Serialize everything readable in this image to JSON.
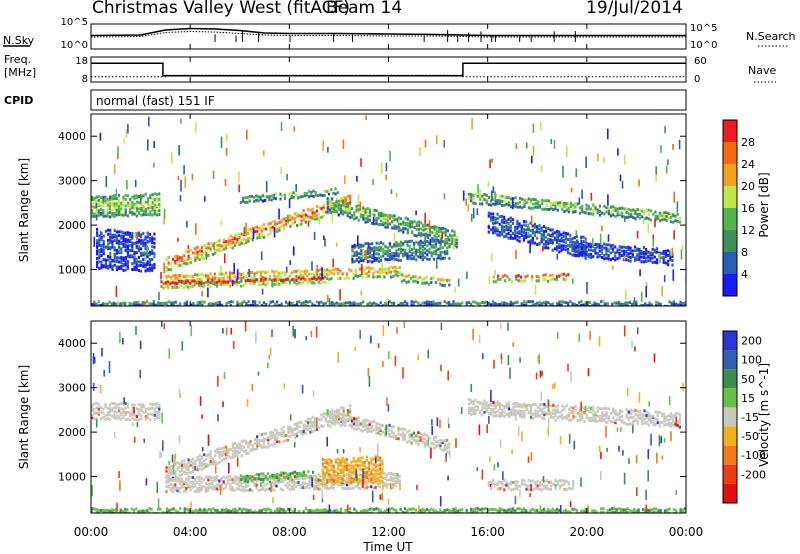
{
  "header": {
    "site": "Christmas Valley West (fitACF)",
    "beam": "Beam 14",
    "date": "19/Jul/2014"
  },
  "side_labels": {
    "nsky": "N.Sky",
    "nsearch": "N.Search",
    "freq_line1": "Freq.",
    "freq_line2": "[MHz]",
    "nave": "Nave",
    "cpid": "CPID"
  },
  "cpid_text": "normal (fast) 151 IF",
  "xlabel": "Time UT",
  "x_ticks": [
    "00:00",
    "04:00",
    "08:00",
    "12:00",
    "16:00",
    "20:00",
    "00:00"
  ],
  "noise_ticks": {
    "left": [
      "10^5",
      "10^0"
    ],
    "right": [
      "10^5",
      "10^0"
    ]
  },
  "freq_ticks": {
    "left": [
      "18",
      "8"
    ],
    "right": [
      "60",
      "0"
    ]
  },
  "colors": {
    "power": [
      "#1a1aff",
      "#2a5db8",
      "#3f8f5a",
      "#52b44a",
      "#bfe84a",
      "#f2a21e",
      "#f56b15",
      "#ee1c1c"
    ],
    "velocity": [
      "#2a36d6",
      "#2f5fae",
      "#3a8f4f",
      "#66c24a",
      "#c8c8be",
      "#f0b020",
      "#ee7a1a",
      "#f03a16",
      "#e01010"
    ]
  },
  "chart_data": [
    {
      "type": "line",
      "title": "N.Sky / N.Search",
      "x_range": [
        0,
        24
      ],
      "ylim": [
        0,
        5
      ],
      "log_scale": true,
      "series": [
        {
          "name": "N.Sky",
          "x": [
            0,
            2,
            3,
            4,
            5,
            6,
            7,
            8,
            10,
            12,
            14,
            15,
            16,
            18,
            20,
            22,
            24
          ],
          "y": [
            0.5,
            0.6,
            1.6,
            1.9,
            1.8,
            1.5,
            1.0,
            0.9,
            0.9,
            0.8,
            0.7,
            0.6,
            0.5,
            0.5,
            0.5,
            0.5,
            0.5
          ]
        },
        {
          "name": "N.Search",
          "x": [
            0,
            2,
            3,
            4,
            5,
            6,
            7,
            8,
            10,
            12,
            14,
            15,
            16,
            18,
            20,
            22,
            24
          ],
          "y": [
            0.4,
            0.5,
            1.3,
            1.5,
            1.4,
            1.1,
            0.8,
            0.7,
            0.7,
            0.6,
            0.6,
            0.5,
            0.4,
            0.4,
            0.4,
            0.4,
            0.4
          ]
        }
      ]
    },
    {
      "type": "line",
      "title": "Freq. / Nave",
      "x_range": [
        0,
        24
      ],
      "ylim_left": [
        8,
        18
      ],
      "ylim_right": [
        0,
        60
      ],
      "series": [
        {
          "name": "Freq.",
          "x": [
            0,
            2.9,
            2.9,
            15,
            15,
            24
          ],
          "y": [
            15.5,
            15.5,
            10.5,
            10.5,
            15.5,
            15.5
          ]
        },
        {
          "name": "Nave",
          "x": [
            0,
            3,
            3,
            15,
            15,
            24
          ],
          "y": [
            22,
            22,
            26,
            26,
            22,
            22
          ]
        }
      ]
    },
    {
      "type": "heatmap",
      "title": "",
      "xlabel": "Time UT",
      "ylabel": "Slant Range [km]",
      "x_range": [
        0,
        24
      ],
      "ylim": [
        180,
        4500
      ],
      "y_ticks": [
        1000,
        2000,
        3000,
        4000
      ],
      "colorbar_label": "Power [dB]",
      "colorbar_ticks": [
        4,
        8,
        12,
        16,
        20,
        24,
        28
      ],
      "bands": [
        {
          "t": [
            0,
            2.8
          ],
          "range_center": [
            2450,
            2500
          ],
          "width": 500,
          "level": 0.55
        },
        {
          "t": [
            0.2,
            2.6
          ],
          "range_center": [
            1500,
            1400
          ],
          "width": 900,
          "level": 0.15
        },
        {
          "t": [
            3.0,
            10.5
          ],
          "range_center": [
            1150,
            2600
          ],
          "width": 320,
          "level": 0.85
        },
        {
          "t": [
            3.0,
            12.5
          ],
          "range_center": [
            800,
            1000
          ],
          "width": 260,
          "level": 0.75
        },
        {
          "t": [
            2.8,
            9.5
          ],
          "range_center": [
            700,
            800
          ],
          "width": 180,
          "level": 0.95
        },
        {
          "t": [
            6,
            10
          ],
          "range_center": [
            2600,
            2800
          ],
          "width": 150,
          "level": 0.4
        },
        {
          "t": [
            9.5,
            14.8
          ],
          "range_center": [
            2500,
            1700
          ],
          "width": 350,
          "level": 0.45
        },
        {
          "t": [
            10.5,
            14.5
          ],
          "range_center": [
            1400,
            1500
          ],
          "width": 450,
          "level": 0.35
        },
        {
          "t": [
            12.5,
            14.5
          ],
          "range_center": [
            850,
            750
          ],
          "width": 200,
          "level": 0.6
        },
        {
          "t": [
            15.2,
            23.8
          ],
          "range_center": [
            2650,
            2200
          ],
          "width": 250,
          "level": 0.5
        },
        {
          "t": [
            16,
            20
          ],
          "range_center": [
            2100,
            1500
          ],
          "width": 500,
          "level": 0.2
        },
        {
          "t": [
            16.2,
            19.3
          ],
          "range_center": [
            850,
            870
          ],
          "width": 200,
          "level": 0.82
        },
        {
          "t": [
            19.5,
            23.5
          ],
          "range_center": [
            1500,
            1300
          ],
          "width": 350,
          "level": 0.15
        },
        {
          "t": [
            0,
            24
          ],
          "range_center": [
            250,
            250
          ],
          "width": 120,
          "level": 0.3
        }
      ]
    },
    {
      "type": "heatmap",
      "title": "",
      "xlabel": "Time UT",
      "ylabel": "Slant Range [km]",
      "x_range": [
        0,
        24
      ],
      "ylim": [
        180,
        4500
      ],
      "y_ticks": [
        1000,
        2000,
        3000,
        4000
      ],
      "colorbar_label": "Velocity [m s^-1]",
      "colorbar_ticks": [
        200,
        100,
        50,
        15,
        -15,
        -50,
        -100,
        -200
      ],
      "bands": [
        {
          "t": [
            0,
            2.8
          ],
          "range_center": [
            2500,
            2500
          ],
          "width": 400,
          "level": 0.45
        },
        {
          "t": [
            3,
            10.5
          ],
          "range_center": [
            1100,
            2500
          ],
          "width": 350,
          "level": 0.45
        },
        {
          "t": [
            3,
            12.5
          ],
          "range_center": [
            850,
            950
          ],
          "width": 350,
          "level": 0.45
        },
        {
          "t": [
            9.3,
            11.8
          ],
          "range_center": [
            1150,
            1200
          ],
          "width": 600,
          "level": 0.62
        },
        {
          "t": [
            9.5,
            14.5
          ],
          "range_center": [
            2400,
            1700
          ],
          "width": 300,
          "level": 0.45
        },
        {
          "t": [
            15.2,
            23.8
          ],
          "range_center": [
            2600,
            2300
          ],
          "width": 350,
          "level": 0.45
        },
        {
          "t": [
            16,
            19.5
          ],
          "range_center": [
            850,
            850
          ],
          "width": 250,
          "level": 0.45
        },
        {
          "t": [
            6,
            9
          ],
          "range_center": [
            1000,
            1100
          ],
          "width": 150,
          "level": 0.38
        },
        {
          "t": [
            0,
            24
          ],
          "range_center": [
            250,
            250
          ],
          "width": 110,
          "level": 0.35
        }
      ]
    }
  ]
}
